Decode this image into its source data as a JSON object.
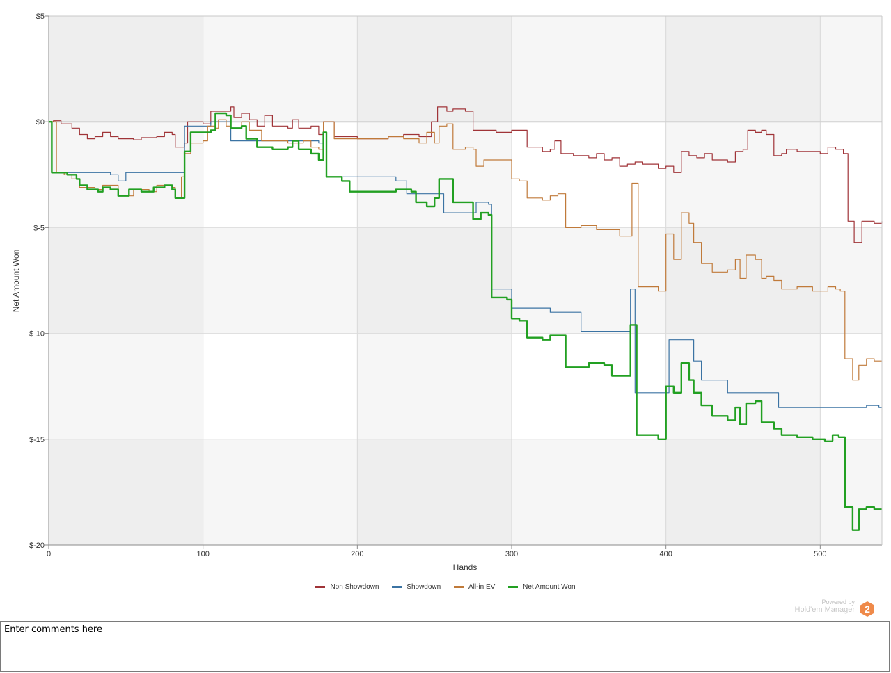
{
  "colors": {
    "non_showdown": "#a03438",
    "showdown": "#3b73a3",
    "allin_ev": "#c07a3a",
    "net_won": "#22a022",
    "band_dark": "#eeeeee",
    "band_light": "#f6f6f6",
    "band_white": "#ffffff",
    "brand_orange": "#ef8a4a"
  },
  "chart_data": {
    "type": "line",
    "xlabel": "Hands",
    "ylabel": "Net Amount Won",
    "xlim": [
      0,
      540
    ],
    "ylim": [
      -20,
      5
    ],
    "x_ticks": [
      "0",
      "100",
      "200",
      "300",
      "400",
      "500"
    ],
    "y_ticks": [
      "$5",
      "$0",
      "$-5",
      "$-10",
      "$-15",
      "$-20"
    ],
    "grid": true,
    "legend_position": "bottom",
    "series": [
      {
        "name": "Non Showdown",
        "color": "#a03438",
        "points": [
          [
            0,
            0
          ],
          [
            3,
            0.05
          ],
          [
            8,
            -0.1
          ],
          [
            15,
            -0.3
          ],
          [
            20,
            -0.6
          ],
          [
            25,
            -0.8
          ],
          [
            30,
            -0.7
          ],
          [
            35,
            -0.5
          ],
          [
            40,
            -0.7
          ],
          [
            45,
            -0.8
          ],
          [
            55,
            -0.85
          ],
          [
            60,
            -0.75
          ],
          [
            70,
            -0.7
          ],
          [
            75,
            -0.5
          ],
          [
            80,
            -0.6
          ],
          [
            82,
            -1.2
          ],
          [
            88,
            -1.0
          ],
          [
            90,
            0.0
          ],
          [
            100,
            -0.1
          ],
          [
            105,
            0.5
          ],
          [
            115,
            0.5
          ],
          [
            118,
            0.7
          ],
          [
            120,
            0.2
          ],
          [
            125,
            0.4
          ],
          [
            130,
            0.1
          ],
          [
            135,
            -0.2
          ],
          [
            140,
            0.3
          ],
          [
            145,
            -0.2
          ],
          [
            155,
            -0.3
          ],
          [
            158,
            0.1
          ],
          [
            162,
            -0.3
          ],
          [
            170,
            -0.2
          ],
          [
            175,
            -0.6
          ],
          [
            178,
            0.0
          ],
          [
            185,
            -0.7
          ],
          [
            200,
            -0.8
          ],
          [
            220,
            -0.7
          ],
          [
            230,
            -0.6
          ],
          [
            240,
            -0.7
          ],
          [
            248,
            0.0
          ],
          [
            252,
            0.7
          ],
          [
            258,
            0.5
          ],
          [
            262,
            0.6
          ],
          [
            270,
            0.5
          ],
          [
            275,
            -0.4
          ],
          [
            290,
            -0.5
          ],
          [
            300,
            -0.4
          ],
          [
            310,
            -1.2
          ],
          [
            320,
            -1.4
          ],
          [
            325,
            -1.3
          ],
          [
            328,
            -0.9
          ],
          [
            332,
            -1.5
          ],
          [
            340,
            -1.6
          ],
          [
            350,
            -1.7
          ],
          [
            355,
            -1.5
          ],
          [
            360,
            -1.8
          ],
          [
            365,
            -1.7
          ],
          [
            370,
            -2.1
          ],
          [
            375,
            -2.0
          ],
          [
            380,
            -1.9
          ],
          [
            385,
            -2.0
          ],
          [
            395,
            -2.2
          ],
          [
            400,
            -2.1
          ],
          [
            405,
            -2.4
          ],
          [
            410,
            -1.4
          ],
          [
            415,
            -1.6
          ],
          [
            420,
            -1.7
          ],
          [
            425,
            -1.5
          ],
          [
            430,
            -1.8
          ],
          [
            440,
            -1.9
          ],
          [
            445,
            -1.4
          ],
          [
            450,
            -1.3
          ],
          [
            453,
            -0.4
          ],
          [
            458,
            -0.5
          ],
          [
            462,
            -0.4
          ],
          [
            465,
            -0.6
          ],
          [
            470,
            -1.6
          ],
          [
            475,
            -1.5
          ],
          [
            478,
            -1.3
          ],
          [
            485,
            -1.4
          ],
          [
            500,
            -1.5
          ],
          [
            505,
            -1.2
          ],
          [
            510,
            -1.3
          ],
          [
            515,
            -1.5
          ],
          [
            518,
            -4.7
          ],
          [
            522,
            -5.7
          ],
          [
            527,
            -4.7
          ],
          [
            535,
            -4.8
          ],
          [
            540,
            -4.7
          ]
        ]
      },
      {
        "name": "Showdown",
        "color": "#3b73a3",
        "points": [
          [
            0,
            0
          ],
          [
            2,
            -2.4
          ],
          [
            40,
            -2.5
          ],
          [
            45,
            -2.8
          ],
          [
            50,
            -2.4
          ],
          [
            85,
            -2.4
          ],
          [
            88,
            -0.2
          ],
          [
            100,
            -0.2
          ],
          [
            105,
            0.0
          ],
          [
            115,
            0.0
          ],
          [
            118,
            -0.9
          ],
          [
            175,
            -1.0
          ],
          [
            178,
            -0.5
          ],
          [
            180,
            -2.6
          ],
          [
            220,
            -2.6
          ],
          [
            225,
            -2.8
          ],
          [
            232,
            -3.4
          ],
          [
            255,
            -3.4
          ],
          [
            256,
            -4.3
          ],
          [
            275,
            -4.3
          ],
          [
            277,
            -3.8
          ],
          [
            285,
            -3.9
          ],
          [
            287,
            -7.9
          ],
          [
            298,
            -7.9
          ],
          [
            300,
            -8.8
          ],
          [
            325,
            -9.0
          ],
          [
            345,
            -9.9
          ],
          [
            375,
            -9.9
          ],
          [
            377,
            -7.9
          ],
          [
            380,
            -12.8
          ],
          [
            400,
            -12.8
          ],
          [
            402,
            -10.3
          ],
          [
            415,
            -10.3
          ],
          [
            418,
            -11.3
          ],
          [
            423,
            -12.2
          ],
          [
            435,
            -12.2
          ],
          [
            440,
            -12.8
          ],
          [
            465,
            -12.8
          ],
          [
            473,
            -13.5
          ],
          [
            520,
            -13.5
          ],
          [
            530,
            -13.4
          ],
          [
            538,
            -13.5
          ],
          [
            540,
            -13.5
          ]
        ]
      },
      {
        "name": "All-in EV",
        "color": "#c07a3a",
        "points": [
          [
            0,
            0
          ],
          [
            5,
            -2.4
          ],
          [
            10,
            -2.5
          ],
          [
            15,
            -2.7
          ],
          [
            20,
            -3.1
          ],
          [
            30,
            -3.2
          ],
          [
            35,
            -3.0
          ],
          [
            45,
            -3.5
          ],
          [
            55,
            -3.2
          ],
          [
            65,
            -3.3
          ],
          [
            70,
            -3.0
          ],
          [
            80,
            -3.1
          ],
          [
            82,
            -3.6
          ],
          [
            86,
            -2.6
          ],
          [
            88,
            -1.5
          ],
          [
            92,
            -1.0
          ],
          [
            100,
            -0.9
          ],
          [
            103,
            -0.2
          ],
          [
            108,
            -0.3
          ],
          [
            110,
            0.1
          ],
          [
            115,
            -0.2
          ],
          [
            118,
            -0.3
          ],
          [
            122,
            -0.3
          ],
          [
            125,
            0.0
          ],
          [
            130,
            -0.4
          ],
          [
            138,
            -0.9
          ],
          [
            155,
            -1.0
          ],
          [
            165,
            -0.9
          ],
          [
            170,
            -1.2
          ],
          [
            175,
            -1.3
          ],
          [
            178,
            0.0
          ],
          [
            185,
            -0.8
          ],
          [
            200,
            -0.8
          ],
          [
            220,
            -0.7
          ],
          [
            230,
            -0.8
          ],
          [
            240,
            -1.0
          ],
          [
            245,
            -0.5
          ],
          [
            250,
            -1.0
          ],
          [
            253,
            -0.2
          ],
          [
            258,
            -0.1
          ],
          [
            262,
            -1.3
          ],
          [
            270,
            -1.2
          ],
          [
            275,
            -1.3
          ],
          [
            277,
            -2.1
          ],
          [
            282,
            -1.8
          ],
          [
            295,
            -1.8
          ],
          [
            300,
            -2.7
          ],
          [
            305,
            -2.8
          ],
          [
            310,
            -3.6
          ],
          [
            320,
            -3.7
          ],
          [
            325,
            -3.5
          ],
          [
            330,
            -3.4
          ],
          [
            335,
            -5.0
          ],
          [
            345,
            -4.9
          ],
          [
            350,
            -4.9
          ],
          [
            355,
            -5.1
          ],
          [
            370,
            -5.4
          ],
          [
            378,
            -2.9
          ],
          [
            382,
            -7.8
          ],
          [
            395,
            -8.0
          ],
          [
            400,
            -5.3
          ],
          [
            405,
            -6.5
          ],
          [
            410,
            -4.3
          ],
          [
            415,
            -4.8
          ],
          [
            418,
            -5.7
          ],
          [
            423,
            -6.7
          ],
          [
            430,
            -7.1
          ],
          [
            440,
            -7.0
          ],
          [
            445,
            -6.5
          ],
          [
            448,
            -7.4
          ],
          [
            452,
            -6.3
          ],
          [
            458,
            -6.5
          ],
          [
            462,
            -7.4
          ],
          [
            465,
            -7.3
          ],
          [
            470,
            -7.5
          ],
          [
            475,
            -7.9
          ],
          [
            485,
            -7.8
          ],
          [
            495,
            -8.0
          ],
          [
            505,
            -7.8
          ],
          [
            510,
            -7.9
          ],
          [
            513,
            -8.0
          ],
          [
            516,
            -11.2
          ],
          [
            521,
            -12.2
          ],
          [
            525,
            -11.5
          ],
          [
            530,
            -11.2
          ],
          [
            535,
            -11.3
          ],
          [
            540,
            -11.3
          ]
        ]
      },
      {
        "name": "Net Amount Won",
        "color": "#22a022",
        "points": [
          [
            0,
            0
          ],
          [
            2,
            -2.4
          ],
          [
            12,
            -2.5
          ],
          [
            18,
            -2.7
          ],
          [
            20,
            -3.0
          ],
          [
            25,
            -3.2
          ],
          [
            32,
            -3.3
          ],
          [
            35,
            -3.1
          ],
          [
            40,
            -3.2
          ],
          [
            45,
            -3.5
          ],
          [
            50,
            -3.5
          ],
          [
            52,
            -3.2
          ],
          [
            60,
            -3.3
          ],
          [
            68,
            -3.1
          ],
          [
            75,
            -3.0
          ],
          [
            80,
            -3.2
          ],
          [
            82,
            -3.6
          ],
          [
            87,
            -3.6
          ],
          [
            88,
            -1.4
          ],
          [
            92,
            -0.5
          ],
          [
            105,
            -0.4
          ],
          [
            108,
            0.4
          ],
          [
            115,
            0.3
          ],
          [
            118,
            -0.3
          ],
          [
            125,
            -0.2
          ],
          [
            128,
            -0.8
          ],
          [
            135,
            -1.2
          ],
          [
            145,
            -1.3
          ],
          [
            155,
            -1.2
          ],
          [
            158,
            -0.9
          ],
          [
            162,
            -1.3
          ],
          [
            170,
            -1.5
          ],
          [
            175,
            -1.8
          ],
          [
            178,
            -0.5
          ],
          [
            180,
            -2.6
          ],
          [
            190,
            -2.8
          ],
          [
            195,
            -3.3
          ],
          [
            210,
            -3.3
          ],
          [
            225,
            -3.2
          ],
          [
            235,
            -3.3
          ],
          [
            238,
            -3.8
          ],
          [
            245,
            -4.0
          ],
          [
            250,
            -3.6
          ],
          [
            253,
            -2.7
          ],
          [
            258,
            -2.7
          ],
          [
            262,
            -3.8
          ],
          [
            270,
            -3.8
          ],
          [
            275,
            -4.6
          ],
          [
            280,
            -4.3
          ],
          [
            285,
            -4.4
          ],
          [
            287,
            -8.3
          ],
          [
            297,
            -8.4
          ],
          [
            300,
            -9.3
          ],
          [
            305,
            -9.4
          ],
          [
            310,
            -10.2
          ],
          [
            320,
            -10.3
          ],
          [
            325,
            -10.1
          ],
          [
            330,
            -10.1
          ],
          [
            335,
            -11.6
          ],
          [
            345,
            -11.6
          ],
          [
            350,
            -11.4
          ],
          [
            360,
            -11.5
          ],
          [
            365,
            -12.0
          ],
          [
            375,
            -12.0
          ],
          [
            377,
            -9.6
          ],
          [
            381,
            -14.8
          ],
          [
            395,
            -15.0
          ],
          [
            400,
            -12.5
          ],
          [
            405,
            -12.8
          ],
          [
            410,
            -11.4
          ],
          [
            415,
            -12.2
          ],
          [
            418,
            -12.8
          ],
          [
            423,
            -13.4
          ],
          [
            430,
            -13.9
          ],
          [
            440,
            -14.1
          ],
          [
            445,
            -13.5
          ],
          [
            448,
            -14.3
          ],
          [
            452,
            -13.3
          ],
          [
            458,
            -13.2
          ],
          [
            462,
            -14.2
          ],
          [
            470,
            -14.5
          ],
          [
            475,
            -14.8
          ],
          [
            485,
            -14.9
          ],
          [
            495,
            -15.0
          ],
          [
            503,
            -15.1
          ],
          [
            508,
            -14.8
          ],
          [
            512,
            -14.9
          ],
          [
            516,
            -18.2
          ],
          [
            521,
            -19.3
          ],
          [
            525,
            -18.3
          ],
          [
            530,
            -18.2
          ],
          [
            535,
            -18.3
          ],
          [
            540,
            -18.3
          ]
        ]
      }
    ]
  },
  "legend": {
    "items": [
      {
        "label": "Non Showdown",
        "color": "#a03438"
      },
      {
        "label": "Showdown",
        "color": "#3b73a3"
      },
      {
        "label": "All-in EV",
        "color": "#c07a3a"
      },
      {
        "label": "Net Amount Won",
        "color": "#22a022"
      }
    ]
  },
  "branding": {
    "powered_by": "Powered by",
    "product": "Hold'em Manager",
    "badge_number": "2"
  },
  "comments": {
    "text": "Enter comments here"
  }
}
